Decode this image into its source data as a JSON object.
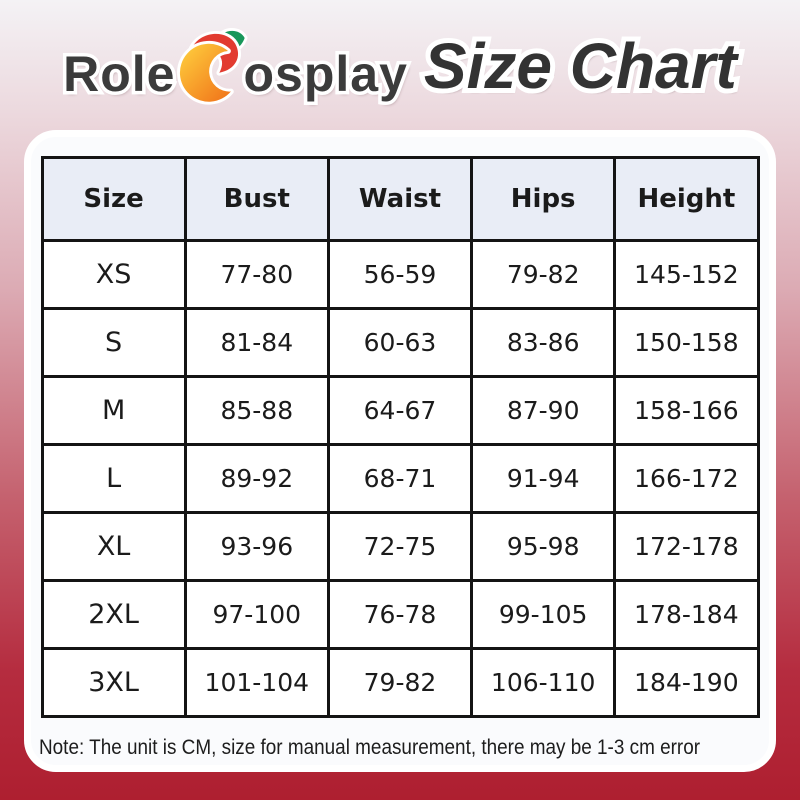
{
  "brand": {
    "name_part1": "Role",
    "name_part2": "osplay",
    "icon": "crescent-moon-logo-icon"
  },
  "title": "Size Chart",
  "table": {
    "columns": [
      "Size",
      "Bust",
      "Waist",
      "Hips",
      "Height"
    ],
    "rows": [
      [
        "XS",
        "77-80",
        "56-59",
        "79-82",
        "145-152"
      ],
      [
        "S",
        "81-84",
        "60-63",
        "83-86",
        "150-158"
      ],
      [
        "M",
        "85-88",
        "64-67",
        "87-90",
        "158-166"
      ],
      [
        "L",
        "89-92",
        "68-71",
        "91-94",
        "166-172"
      ],
      [
        "XL",
        "93-96",
        "72-75",
        "95-98",
        "172-178"
      ],
      [
        "2XL",
        "97-100",
        "76-78",
        "99-105",
        "178-184"
      ],
      [
        "3XL",
        "101-104",
        "79-82",
        "106-110",
        "184-190"
      ]
    ],
    "unit": "CM"
  },
  "note": "Note: The unit is CM, size for manual measurement, there may be 1-3 cm error",
  "colors": {
    "background_top": "#f4f2f5",
    "background_bottom": "#ae1f30",
    "panel_background": "#fafbfd",
    "panel_rim": "#ffffff",
    "header_row_background": "#e9edf6",
    "table_border": "#141414",
    "text": "#1b1b1b",
    "title_text": "#333333",
    "logo_text": "#3b3b3b",
    "logo_orange": "#f1751a",
    "logo_yellow": "#ffd23f",
    "logo_red": "#e23b30",
    "logo_green": "#18975a"
  }
}
